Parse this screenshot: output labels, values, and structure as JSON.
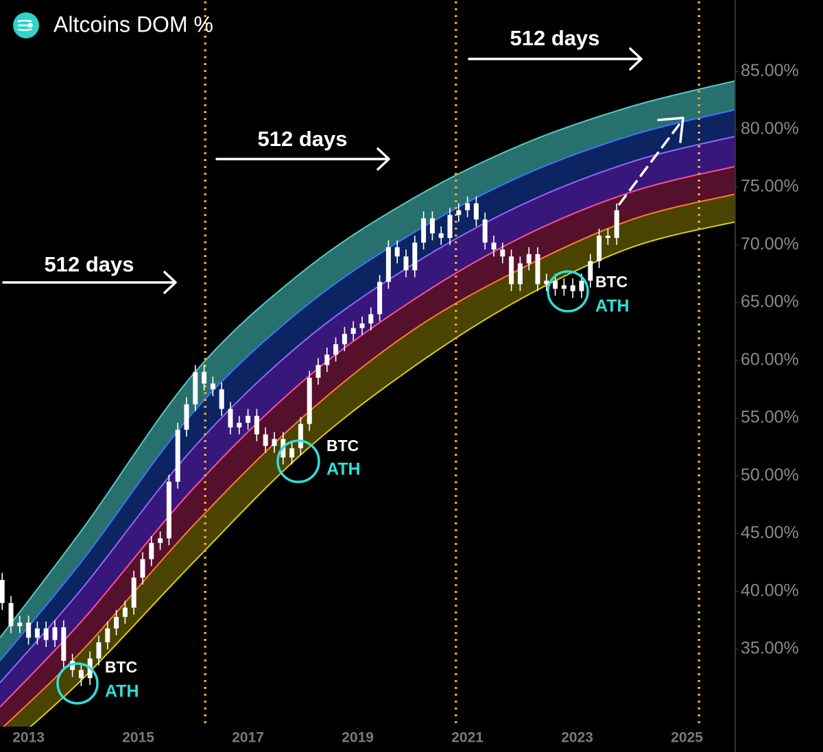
{
  "chart_data": {
    "type": "candlestick",
    "title": "Altcoins DOM %",
    "color": "#ffffff",
    "x": [
      2012.52,
      2012.68,
      2012.84,
      2013.0,
      2013.16,
      2013.32,
      2013.48,
      2013.64,
      2013.8,
      2013.96,
      2014.12,
      2014.28,
      2014.44,
      2014.6,
      2014.76,
      2014.92,
      2015.08,
      2015.24,
      2015.4,
      2015.56,
      2015.72,
      2015.88,
      2016.04,
      2016.2,
      2016.36,
      2016.52,
      2016.68,
      2016.84,
      2017.0,
      2017.16,
      2017.32,
      2017.48,
      2017.64,
      2017.8,
      2017.96,
      2018.12,
      2018.28,
      2018.44,
      2018.6,
      2018.76,
      2018.92,
      2019.08,
      2019.24,
      2019.4,
      2019.56,
      2019.72,
      2019.88,
      2020.04,
      2020.2,
      2020.36,
      2020.52,
      2020.68,
      2020.84,
      2021.0,
      2021.16,
      2021.32,
      2021.48,
      2021.64,
      2021.8,
      2021.96,
      2022.12,
      2022.28,
      2022.44,
      2022.6,
      2022.76,
      2022.92,
      2023.08,
      2023.24,
      2023.4,
      2023.56,
      2023.72
    ],
    "open": [
      41.0,
      39.0,
      37.0,
      37.3,
      36.0,
      36.8,
      35.8,
      36.9,
      34.0,
      33.2,
      32.5,
      34.2,
      35.6,
      36.8,
      37.8,
      38.6,
      41.2,
      42.8,
      44.2,
      44.6,
      49.5,
      54.0,
      56.2,
      59.0,
      58.0,
      57.5,
      55.8,
      54.2,
      54.6,
      55.2,
      53.6,
      52.6,
      53.2,
      51.6,
      52.4,
      54.5,
      58.5,
      59.6,
      60.5,
      61.4,
      62.3,
      62.8,
      63.2,
      64.0,
      66.8,
      69.8,
      69.0,
      67.8,
      70.2,
      72.3,
      71.0,
      70.6,
      72.6,
      73.0,
      73.6,
      72.2,
      70.2,
      69.6,
      69.0,
      66.6,
      68.4,
      69.2,
      66.6,
      66.9,
      66.2,
      66.5,
      66.0,
      66.9,
      68.6,
      70.8,
      70.6
    ],
    "high": [
      41.6,
      39.6,
      37.9,
      37.9,
      37.4,
      37.4,
      37.5,
      37.5,
      34.6,
      33.8,
      34.8,
      36.2,
      37.4,
      38.4,
      39.2,
      41.8,
      43.4,
      44.8,
      45.2,
      50.1,
      54.6,
      56.8,
      59.6,
      59.6,
      58.6,
      58.1,
      56.4,
      55.2,
      55.8,
      55.8,
      54.2,
      53.8,
      53.8,
      53.0,
      55.1,
      59.1,
      60.2,
      61.1,
      62.0,
      62.9,
      63.4,
      63.8,
      64.6,
      67.4,
      70.4,
      70.4,
      69.6,
      70.8,
      72.9,
      72.9,
      71.6,
      73.2,
      73.6,
      74.2,
      74.2,
      72.8,
      70.8,
      70.2,
      69.6,
      69.0,
      69.8,
      69.8,
      67.5,
      67.5,
      67.1,
      67.1,
      67.5,
      69.2,
      71.4,
      71.4,
      73.6
    ],
    "low": [
      38.4,
      36.4,
      36.4,
      35.4,
      35.4,
      35.2,
      35.2,
      33.4,
      32.6,
      31.8,
      31.9,
      33.6,
      35.0,
      36.2,
      37.2,
      38.0,
      40.6,
      42.2,
      43.6,
      44.0,
      48.9,
      53.4,
      55.6,
      57.4,
      56.9,
      55.2,
      53.6,
      53.6,
      54.0,
      53.0,
      52.0,
      52.0,
      51.0,
      51.0,
      51.8,
      53.9,
      57.9,
      59.0,
      59.9,
      60.8,
      61.7,
      62.2,
      62.6,
      63.4,
      66.2,
      68.4,
      67.2,
      67.2,
      69.6,
      70.4,
      70.0,
      70.0,
      72.0,
      72.4,
      71.6,
      69.6,
      69.0,
      68.4,
      66.0,
      66.0,
      67.8,
      66.0,
      66.0,
      65.6,
      65.6,
      65.4,
      65.4,
      66.3,
      68.0,
      70.0,
      70.0
    ],
    "close": [
      39.0,
      37.0,
      37.3,
      36.0,
      36.8,
      35.8,
      36.9,
      34.0,
      33.2,
      32.5,
      34.2,
      35.6,
      36.8,
      37.8,
      38.6,
      41.2,
      42.8,
      44.2,
      44.6,
      49.5,
      54.0,
      56.2,
      59.0,
      58.0,
      57.5,
      55.8,
      54.2,
      54.6,
      55.2,
      53.6,
      52.6,
      53.2,
      51.6,
      52.4,
      54.5,
      58.5,
      59.6,
      60.5,
      61.4,
      62.3,
      62.8,
      63.2,
      64.0,
      66.8,
      69.8,
      69.0,
      67.8,
      70.2,
      72.3,
      71.0,
      70.6,
      72.6,
      73.0,
      73.6,
      72.2,
      70.2,
      69.6,
      69.0,
      66.6,
      68.4,
      69.2,
      66.6,
      66.9,
      66.2,
      66.5,
      66.0,
      66.9,
      68.6,
      70.8,
      70.6,
      73.0
    ],
    "xlim": [
      2012.48,
      2025.88
    ],
    "xticks": [
      2013,
      2015,
      2017,
      2019,
      2021,
      2023,
      2025
    ],
    "ylim": [
      28.3,
      91.2
    ],
    "yticks": [
      {
        "value": 35,
        "label": "35.00%"
      },
      {
        "value": 40,
        "label": "40.00%"
      },
      {
        "value": 45,
        "label": "45.00%"
      },
      {
        "value": 50,
        "label": "50.00%"
      },
      {
        "value": 55,
        "label": "55.00%"
      },
      {
        "value": 60,
        "label": "60.00%"
      },
      {
        "value": 65,
        "label": "65.00%"
      },
      {
        "value": 70,
        "label": "70.00%"
      },
      {
        "value": 75,
        "label": "75.00%"
      },
      {
        "value": 80,
        "label": "80.00%"
      },
      {
        "value": 85,
        "label": "85.00%"
      }
    ],
    "bands": {
      "x": [
        2012.48,
        2014,
        2016,
        2018,
        2020,
        2022,
        2024,
        2025.88
      ],
      "boundaries": [
        {
          "color": "#5cc8c0",
          "values": [
            36.0,
            45.5,
            58.8,
            67.7,
            74.0,
            78.7,
            82.0,
            84.2
          ]
        },
        {
          "color": "#3d74ff",
          "values": [
            34.0,
            42.8,
            55.5,
            64.5,
            71.0,
            76.0,
            79.5,
            81.7
          ]
        },
        {
          "color": "#9466ff",
          "values": [
            32.1,
            40.4,
            52.4,
            61.6,
            68.3,
            73.5,
            77.2,
            79.4
          ]
        },
        {
          "color": "#ff4f9a",
          "values": [
            30.0,
            37.6,
            48.9,
            58.2,
            65.2,
            70.7,
            74.6,
            76.8
          ]
        },
        {
          "color": "#ff7a2a",
          "values": [
            28.0,
            35.0,
            45.7,
            55.1,
            62.6,
            68.0,
            72.2,
            74.4
          ]
        },
        {
          "color": "#d8cf10",
          "values": [
            26.0,
            32.5,
            42.5,
            52.0,
            59.4,
            65.4,
            69.8,
            72.0
          ]
        }
      ],
      "fills": [
        "#28706e",
        "#0c2461",
        "#38177a",
        "#55102c",
        "#4a4400"
      ]
    },
    "vlines": {
      "values": [
        2016.22,
        2020.79,
        2025.22
      ],
      "color": "#f5a623"
    },
    "annotations": [
      "512 days",
      "512 days",
      "512 days"
    ],
    "labels": [
      {
        "top": "BTC",
        "bottom": "ATH"
      },
      {
        "top": "BTC",
        "bottom": "ATH"
      },
      {
        "top": "BTC",
        "bottom": "ATH"
      }
    ]
  }
}
